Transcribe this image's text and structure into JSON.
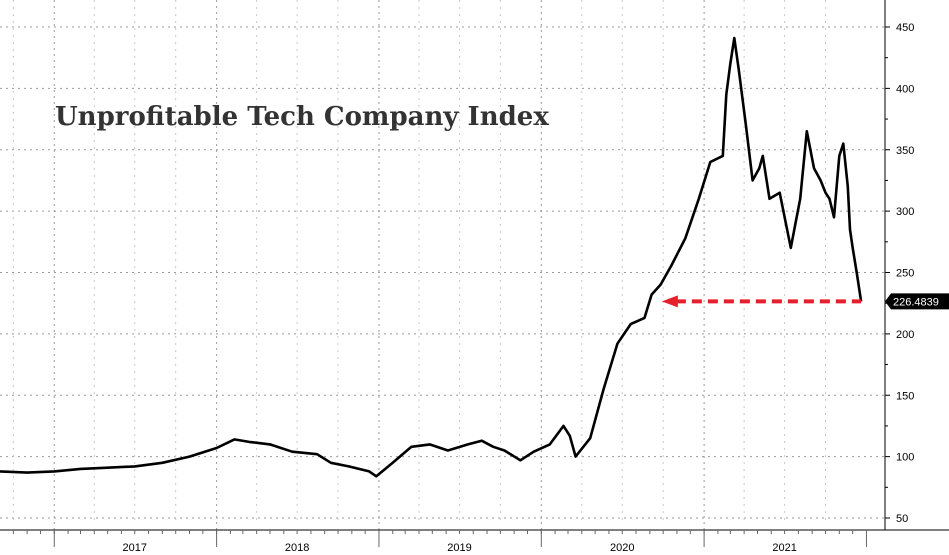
{
  "chart_data": {
    "type": "line",
    "title": "Unprofitable Tech Company Index",
    "xlabel": "",
    "ylabel": "",
    "ylim": [
      45,
      462
    ],
    "grid": true,
    "legend": "none",
    "yticks": [
      "450",
      "400",
      "350",
      "300",
      "250",
      "200",
      "150",
      "100",
      "50"
    ],
    "xticks": [
      "2017",
      "2018",
      "2019",
      "2020",
      "2021"
    ],
    "last_value_label": "226.4839",
    "reference_level": 226.4839,
    "colors": {
      "line": "#000000",
      "arrow": "#e3202b",
      "grid": "#9a9a9a",
      "label_bg": "#000000"
    },
    "series": [
      {
        "x": [
          "2016-09-01",
          "2016-11-01",
          "2017-01-01",
          "2017-03-01",
          "2017-05-01",
          "2017-07-01",
          "2017-09-01",
          "2017-11-01",
          "2018-01-01",
          "2018-02-10",
          "2018-03-15",
          "2018-05-01",
          "2018-06-20",
          "2018-08-15",
          "2018-09-15",
          "2018-10-25",
          "2018-12-10",
          "2018-12-26",
          "2019-02-01",
          "2019-03-15",
          "2019-04-25",
          "2019-06-05",
          "2019-07-20",
          "2019-08-20",
          "2019-09-15",
          "2019-10-10",
          "2019-11-15",
          "2019-12-15",
          "2020-01-20",
          "2020-02-20",
          "2020-03-05",
          "2020-03-18",
          "2020-04-20",
          "2020-05-20",
          "2020-06-20",
          "2020-07-20",
          "2020-08-20",
          "2020-09-05",
          "2020-09-25",
          "2020-10-20",
          "2020-11-20",
          "2020-12-20",
          "2021-01-15",
          "2021-02-12",
          "2021-02-20",
          "2021-03-01",
          "2021-03-10",
          "2021-03-20",
          "2021-04-05",
          "2021-04-20",
          "2021-05-05",
          "2021-05-13",
          "2021-05-28",
          "2021-06-20",
          "2021-07-15",
          "2021-08-05",
          "2021-08-20",
          "2021-09-05",
          "2021-09-20",
          "2021-10-01",
          "2021-10-10",
          "2021-10-20",
          "2021-11-01",
          "2021-11-10",
          "2021-11-20",
          "2021-11-25",
          "2021-12-01",
          "2021-12-10",
          "2021-12-20"
        ],
        "values": [
          88,
          87,
          88,
          90,
          91,
          92,
          95,
          100,
          107,
          114,
          112,
          110,
          104,
          102,
          95,
          92,
          88,
          84,
          95,
          108,
          110,
          105,
          110,
          113,
          108,
          105,
          97,
          104,
          110,
          125,
          117,
          100,
          115,
          155,
          192,
          208,
          213,
          232,
          240,
          256,
          278,
          310,
          340,
          345,
          395,
          420,
          441,
          415,
          370,
          325,
          335,
          345,
          310,
          315,
          270,
          310,
          365,
          335,
          325,
          315,
          310,
          295,
          345,
          355,
          320,
          285,
          270,
          250,
          226.48
        ]
      }
    ]
  }
}
